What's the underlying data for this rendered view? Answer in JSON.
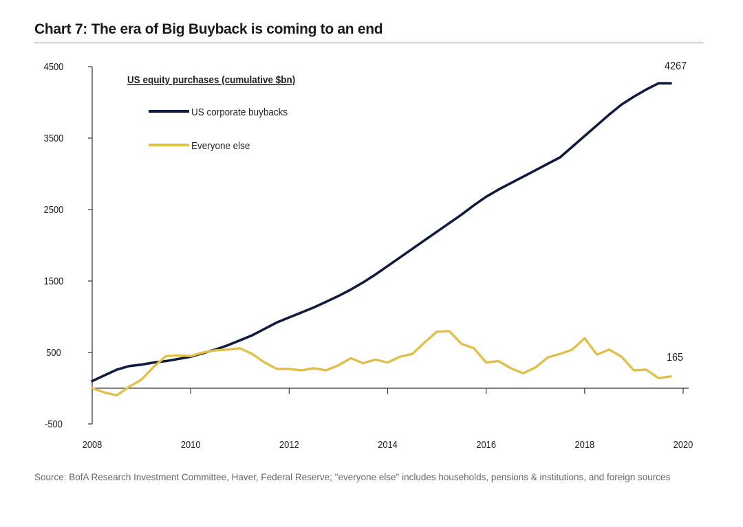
{
  "chart_data": {
    "type": "line",
    "title": "Chart 7: The era of Big Buyback is coming to an end",
    "subtitle": "US equity purchases (cumulative $bn)",
    "xlabel": "",
    "ylabel": "",
    "xlim": [
      2008,
      2020
    ],
    "ylim": [
      -500,
      4500
    ],
    "x_ticks": [
      2008,
      2010,
      2012,
      2014,
      2016,
      2018,
      2020
    ],
    "y_ticks": [
      -500,
      500,
      1500,
      2500,
      3500,
      4500
    ],
    "grid": false,
    "legend": "top-left",
    "series": [
      {
        "name": "US corporate buybacks",
        "color": "#101b3d",
        "x": [
          2008.0,
          2008.25,
          2008.5,
          2008.75,
          2009.0,
          2009.25,
          2009.5,
          2009.75,
          2010.0,
          2010.25,
          2010.5,
          2010.75,
          2011.0,
          2011.25,
          2011.5,
          2011.75,
          2012.0,
          2012.25,
          2012.5,
          2012.75,
          2013.0,
          2013.25,
          2013.5,
          2013.75,
          2014.0,
          2014.25,
          2014.5,
          2014.75,
          2015.0,
          2015.25,
          2015.5,
          2015.75,
          2016.0,
          2016.25,
          2016.5,
          2016.75,
          2017.0,
          2017.25,
          2017.5,
          2017.75,
          2018.0,
          2018.25,
          2018.5,
          2018.75,
          2019.0,
          2019.25,
          2019.5,
          2019.75
        ],
        "values": [
          100,
          180,
          260,
          310,
          330,
          360,
          380,
          410,
          440,
          490,
          540,
          600,
          670,
          740,
          830,
          920,
          990,
          1060,
          1130,
          1210,
          1290,
          1380,
          1480,
          1590,
          1710,
          1830,
          1950,
          2070,
          2190,
          2310,
          2430,
          2560,
          2680,
          2780,
          2870,
          2960,
          3050,
          3140,
          3230,
          3380,
          3530,
          3680,
          3830,
          3970,
          4080,
          4180,
          4267,
          4267
        ]
      },
      {
        "name": "Everyone else",
        "color": "#e0c04a",
        "x": [
          2008.0,
          2008.25,
          2008.5,
          2008.75,
          2009.0,
          2009.25,
          2009.5,
          2009.75,
          2010.0,
          2010.25,
          2010.5,
          2010.75,
          2011.0,
          2011.25,
          2011.5,
          2011.75,
          2012.0,
          2012.25,
          2012.5,
          2012.75,
          2013.0,
          2013.25,
          2013.5,
          2013.75,
          2014.0,
          2014.25,
          2014.5,
          2014.75,
          2015.0,
          2015.25,
          2015.5,
          2015.75,
          2016.0,
          2016.25,
          2016.5,
          2016.75,
          2017.0,
          2017.25,
          2017.5,
          2017.75,
          2018.0,
          2018.25,
          2018.5,
          2018.75,
          2019.0,
          2019.25,
          2019.5,
          2019.75
        ],
        "values": [
          0,
          -60,
          -100,
          20,
          120,
          300,
          450,
          460,
          450,
          500,
          530,
          540,
          560,
          480,
          360,
          270,
          270,
          250,
          280,
          250,
          320,
          420,
          350,
          400,
          360,
          440,
          480,
          640,
          790,
          800,
          620,
          560,
          360,
          380,
          280,
          210,
          290,
          430,
          480,
          540,
          700,
          470,
          540,
          440,
          250,
          260,
          140,
          165
        ]
      }
    ],
    "annotations": [
      {
        "text": "4267",
        "x": 2019.75,
        "y": 4267
      },
      {
        "text": "165",
        "x": 2019.75,
        "y": 165
      }
    ]
  },
  "source_note": "Source: BofA Research Investment Committee, Haver, Federal Reserve; \"everyone else\" includes households, pensions & institutions, and foreign sources"
}
